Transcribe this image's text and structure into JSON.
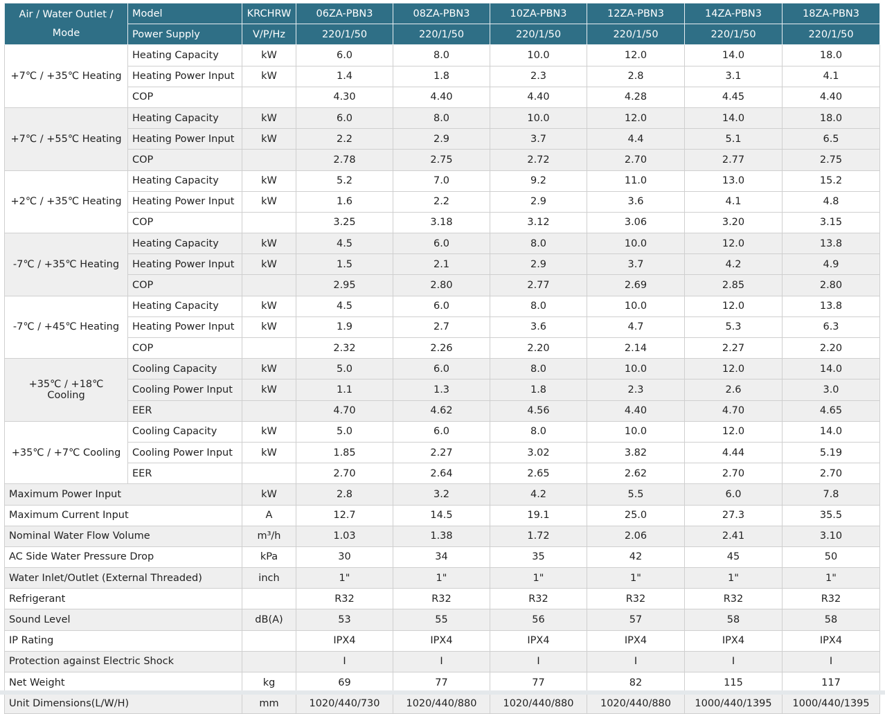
{
  "header": {
    "condition_label": "Air / Water Outlet / Mode",
    "model_label": "Model",
    "series_label": "KRCHRW",
    "models": [
      "06ZA-PBN3",
      "08ZA-PBN3",
      "10ZA-PBN3",
      "12ZA-PBN3",
      "14ZA-PBN3",
      "18ZA-PBN3"
    ],
    "supply_label": "Power Supply",
    "supply_unit": "V/P/Hz",
    "supply_values": [
      "220/1/50",
      "220/1/50",
      "220/1/50",
      "220/1/50",
      "220/1/50",
      "220/1/50"
    ]
  },
  "groups": [
    {
      "condition": "+7℃ / +35℃ Heating",
      "rows": [
        {
          "param": "Heating Capacity",
          "unit": "kW",
          "values": [
            "6.0",
            "8.0",
            "10.0",
            "12.0",
            "14.0",
            "18.0"
          ]
        },
        {
          "param": "Heating Power Input",
          "unit": "kW",
          "values": [
            "1.4",
            "1.8",
            "2.3",
            "2.8",
            "3.1",
            "4.1"
          ]
        },
        {
          "param": "COP",
          "unit": "",
          "values": [
            "4.30",
            "4.40",
            "4.40",
            "4.28",
            "4.45",
            "4.40"
          ]
        }
      ]
    },
    {
      "condition": "+7℃ / +55℃ Heating",
      "rows": [
        {
          "param": "Heating Capacity",
          "unit": "kW",
          "values": [
            "6.0",
            "8.0",
            "10.0",
            "12.0",
            "14.0",
            "18.0"
          ]
        },
        {
          "param": "Heating Power Input",
          "unit": "kW",
          "values": [
            "2.2",
            "2.9",
            "3.7",
            "4.4",
            "5.1",
            "6.5"
          ]
        },
        {
          "param": "COP",
          "unit": "",
          "values": [
            "2.78",
            "2.75",
            "2.72",
            "2.70",
            "2.77",
            "2.75"
          ]
        }
      ]
    },
    {
      "condition": "+2℃ / +35℃ Heating",
      "rows": [
        {
          "param": "Heating Capacity",
          "unit": "kW",
          "values": [
            "5.2",
            "7.0",
            "9.2",
            "11.0",
            "13.0",
            "15.2"
          ]
        },
        {
          "param": "Heating Power Input",
          "unit": "kW",
          "values": [
            "1.6",
            "2.2",
            "2.9",
            "3.6",
            "4.1",
            "4.8"
          ]
        },
        {
          "param": "COP",
          "unit": "",
          "values": [
            "3.25",
            "3.18",
            "3.12",
            "3.06",
            "3.20",
            "3.15"
          ]
        }
      ]
    },
    {
      "condition": "-7℃ / +35℃ Heating",
      "rows": [
        {
          "param": "Heating Capacity",
          "unit": "kW",
          "values": [
            "4.5",
            "6.0",
            "8.0",
            "10.0",
            "12.0",
            "13.8"
          ]
        },
        {
          "param": "Heating Power Input",
          "unit": "kW",
          "values": [
            "1.5",
            "2.1",
            "2.9",
            "3.7",
            "4.2",
            "4.9"
          ]
        },
        {
          "param": "COP",
          "unit": "",
          "values": [
            "2.95",
            "2.80",
            "2.77",
            "2.69",
            "2.85",
            "2.80"
          ]
        }
      ]
    },
    {
      "condition": "-7℃ / +45℃ Heating",
      "rows": [
        {
          "param": "Heating Capacity",
          "unit": "kW",
          "values": [
            "4.5",
            "6.0",
            "8.0",
            "10.0",
            "12.0",
            "13.8"
          ]
        },
        {
          "param": "Heating Power Input",
          "unit": "kW",
          "values": [
            "1.9",
            "2.7",
            "3.6",
            "4.7",
            "5.3",
            "6.3"
          ]
        },
        {
          "param": "COP",
          "unit": "",
          "values": [
            "2.32",
            "2.26",
            "2.20",
            "2.14",
            "2.27",
            "2.20"
          ]
        }
      ]
    },
    {
      "condition": "+35℃ / +18℃ Cooling",
      "rows": [
        {
          "param": "Cooling Capacity",
          "unit": "kW",
          "values": [
            "5.0",
            "6.0",
            "8.0",
            "10.0",
            "12.0",
            "14.0"
          ]
        },
        {
          "param": "Cooling Power Input",
          "unit": "kW",
          "values": [
            "1.1",
            "1.3",
            "1.8",
            "2.3",
            "2.6",
            "3.0"
          ]
        },
        {
          "param": "EER",
          "unit": "",
          "values": [
            "4.70",
            "4.62",
            "4.56",
            "4.40",
            "4.70",
            "4.65"
          ]
        }
      ]
    },
    {
      "condition": "+35℃ / +7℃ Cooling",
      "rows": [
        {
          "param": "Cooling Capacity",
          "unit": "kW",
          "values": [
            "5.0",
            "6.0",
            "8.0",
            "10.0",
            "12.0",
            "14.0"
          ]
        },
        {
          "param": "Cooling Power Input",
          "unit": "kW",
          "values": [
            "1.85",
            "2.27",
            "3.02",
            "3.82",
            "4.44",
            "5.19"
          ]
        },
        {
          "param": "EER",
          "unit": "",
          "values": [
            "2.70",
            "2.64",
            "2.65",
            "2.62",
            "2.70",
            "2.70"
          ]
        }
      ]
    }
  ],
  "general": [
    {
      "param": "Maximum Power Input",
      "unit": "kW",
      "values": [
        "2.8",
        "3.2",
        "4.2",
        "5.5",
        "6.0",
        "7.8"
      ]
    },
    {
      "param": "Maximum Current Input",
      "unit": "A",
      "values": [
        "12.7",
        "14.5",
        "19.1",
        "25.0",
        "27.3",
        "35.5"
      ]
    },
    {
      "param": "Nominal Water Flow Volume",
      "unit": "m³/h",
      "values": [
        "1.03",
        "1.38",
        "1.72",
        "2.06",
        "2.41",
        "3.10"
      ]
    },
    {
      "param": "AC Side Water Pressure Drop",
      "unit": "kPa",
      "values": [
        "30",
        "34",
        "35",
        "42",
        "45",
        "50"
      ]
    },
    {
      "param": "Water Inlet/Outlet (External Threaded)",
      "unit": "inch",
      "values": [
        "1\"",
        "1\"",
        "1\"",
        "1\"",
        "1\"",
        "1\""
      ]
    },
    {
      "param": "Refrigerant",
      "unit": "",
      "values": [
        "R32",
        "R32",
        "R32",
        "R32",
        "R32",
        "R32"
      ]
    },
    {
      "param": "Sound Level",
      "unit": "dB(A)",
      "values": [
        "53",
        "55",
        "56",
        "57",
        "58",
        "58"
      ]
    },
    {
      "param": "IP Rating",
      "unit": "",
      "values": [
        "IPX4",
        "IPX4",
        "IPX4",
        "IPX4",
        "IPX4",
        "IPX4"
      ]
    },
    {
      "param": "Protection against Electric Shock",
      "unit": "",
      "values": [
        "I",
        "I",
        "I",
        "I",
        "I",
        "I"
      ]
    },
    {
      "param": "Net Weight",
      "unit": "kg",
      "values": [
        "69",
        "77",
        "77",
        "82",
        "115",
        "117"
      ]
    },
    {
      "param": "Unit Dimensions(L/W/H)",
      "unit": "mm",
      "values": [
        "1020/440/730",
        "1020/440/880",
        "1020/440/880",
        "1020/440/880",
        "1000/440/1395",
        "1000/440/1395"
      ]
    }
  ],
  "colors": {
    "header_bg": "#2f6f86",
    "header_text": "#ffffff",
    "shaded_row": "#efefef",
    "border": "#cfcfcf"
  }
}
